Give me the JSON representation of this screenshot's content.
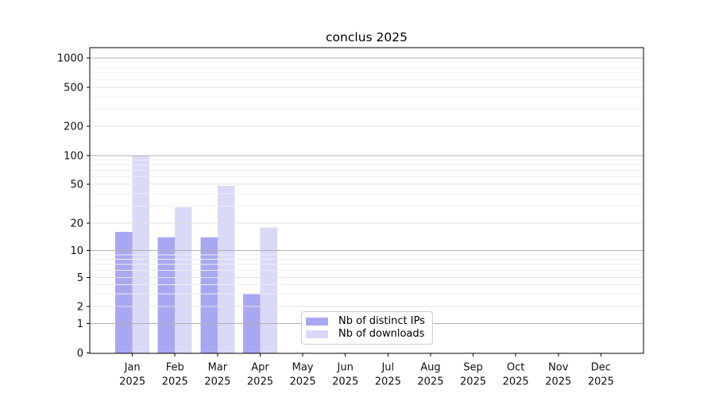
{
  "chart_data": {
    "type": "bar",
    "title": "conclus 2025",
    "categories": [
      "Jan",
      "Feb",
      "Mar",
      "Apr",
      "May",
      "Jun",
      "Jul",
      "Aug",
      "Sep",
      "Oct",
      "Nov",
      "Dec"
    ],
    "category_year": "2025",
    "series": [
      {
        "name": "Nb of distinct IPs",
        "color": "#a8a8f2",
        "values": [
          16,
          14,
          14,
          3,
          0,
          0,
          0,
          0,
          0,
          0,
          0,
          0
        ]
      },
      {
        "name": "Nb of downloads",
        "color": "#d9d9f8",
        "values": [
          100,
          29,
          48,
          18,
          0,
          0,
          0,
          0,
          0,
          0,
          0,
          0
        ]
      }
    ],
    "y_axis": {
      "ticks": [
        0,
        1,
        2,
        5,
        10,
        20,
        50,
        100,
        200,
        500,
        1000
      ],
      "minor_ticks": [
        3,
        4,
        6,
        7,
        8,
        9,
        30,
        40,
        60,
        70,
        80,
        90,
        300,
        400,
        600,
        700,
        800,
        900
      ],
      "decade_ticks": [
        1,
        10,
        100,
        1000
      ],
      "scale": "log-1-2-5-with-linear-zero",
      "ylim": [
        0,
        1280
      ]
    },
    "x_axis": {
      "label_line2": "2025"
    },
    "grid": true,
    "gridlines_above_bars": true,
    "legend_position": "inside-lower-center-left"
  }
}
